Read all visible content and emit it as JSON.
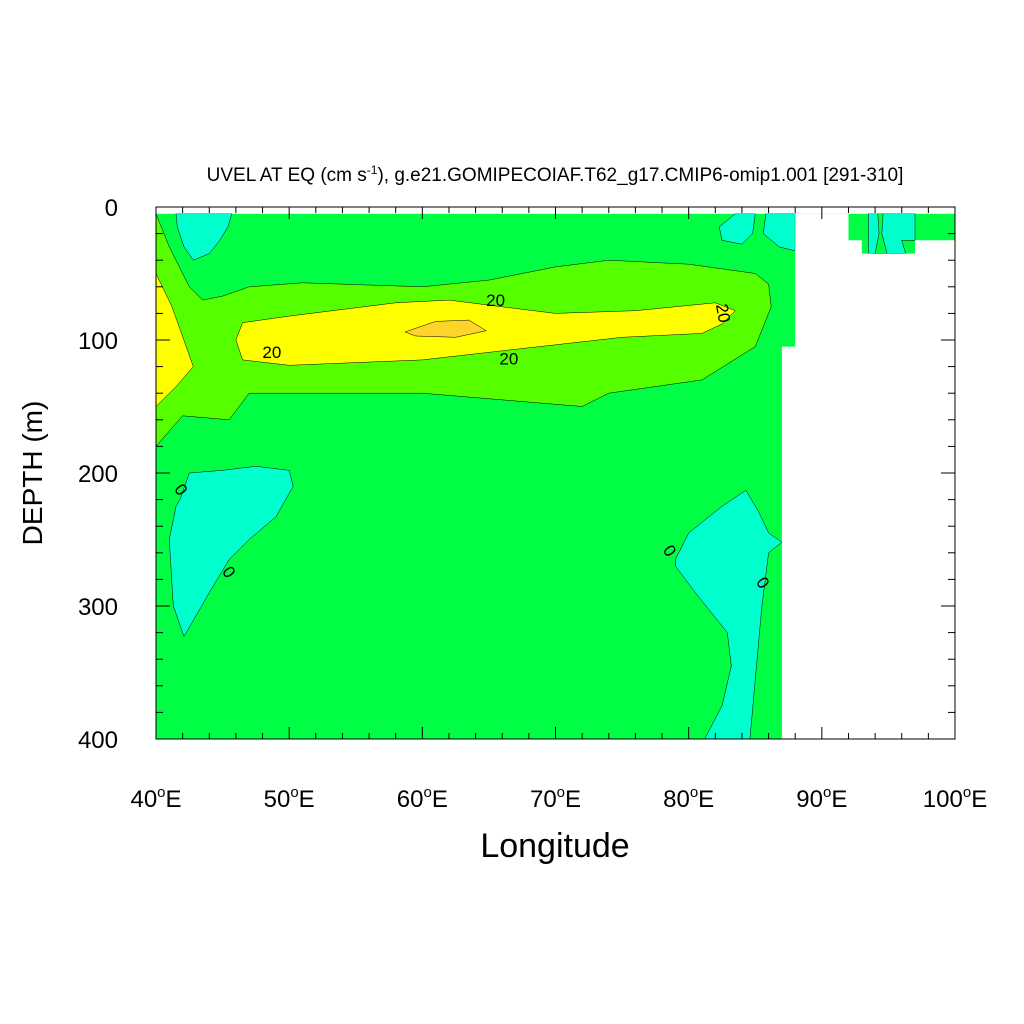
{
  "chart_data": {
    "type": "contour",
    "title": {
      "main": "UVEL AT EQ (cm s",
      "sup": "-1",
      "rest": "), g.e21.GOMIPECOIAF.T62_g17.CMIP6-omip1.001 [291-310]"
    },
    "xlabel": "Longitude",
    "ylabel": "DEPTH (m)",
    "xlim": [
      40,
      100
    ],
    "ylim": [
      0,
      400
    ],
    "y_reversed": true,
    "x_ticks": [
      {
        "value": 40,
        "num": "40",
        "deg": "o",
        "unit": "E"
      },
      {
        "value": 50,
        "num": "50",
        "deg": "o",
        "unit": "E"
      },
      {
        "value": 60,
        "num": "60",
        "deg": "o",
        "unit": "E"
      },
      {
        "value": 70,
        "num": "70",
        "deg": "o",
        "unit": "E"
      },
      {
        "value": 80,
        "num": "80",
        "deg": "o",
        "unit": "E"
      },
      {
        "value": 90,
        "num": "90",
        "deg": "o",
        "unit": "E"
      },
      {
        "value": 100,
        "num": "100",
        "deg": "o",
        "unit": "E"
      }
    ],
    "y_ticks": [
      {
        "value": 0,
        "label": "0"
      },
      {
        "value": 100,
        "label": "100"
      },
      {
        "value": 200,
        "label": "200"
      },
      {
        "value": 300,
        "label": "300"
      },
      {
        "value": 400,
        "label": "400"
      }
    ],
    "contour_fill_colors": {
      "negative": "#00ffcc",
      "zero_to_ten": "#00ff44",
      "ten_to_twenty": "#55ff00",
      "twenty_to_thirty": "#ffff00",
      "above_thirty": "#ffd42a",
      "land_no_data": "#ffffff"
    },
    "regions": [
      {
        "name": "westward-flow-northwest",
        "level": "negative",
        "points": [
          [
            41.5,
            5
          ],
          [
            45.7,
            5
          ],
          [
            45.4,
            15
          ],
          [
            44.8,
            25
          ],
          [
            44.0,
            35
          ],
          [
            42.8,
            40
          ],
          [
            42.1,
            30
          ],
          [
            41.6,
            15
          ]
        ]
      },
      {
        "name": "undercurrent-margin",
        "level": "ten_to_twenty",
        "points": [
          [
            40,
            5
          ],
          [
            41.0,
            30
          ],
          [
            42.5,
            60
          ],
          [
            43.5,
            70
          ],
          [
            45.0,
            67
          ],
          [
            47.0,
            60
          ],
          [
            51.0,
            57
          ],
          [
            60.0,
            60
          ],
          [
            65.0,
            55
          ],
          [
            70.0,
            45
          ],
          [
            74.0,
            40
          ],
          [
            80.0,
            43
          ],
          [
            85.0,
            50
          ],
          [
            86.0,
            58
          ],
          [
            86.2,
            75
          ],
          [
            85.0,
            105
          ],
          [
            81.0,
            130
          ],
          [
            74.0,
            140
          ],
          [
            72.0,
            150
          ],
          [
            60.0,
            140
          ],
          [
            47.0,
            140
          ],
          [
            45.5,
            160
          ],
          [
            42.0,
            157
          ],
          [
            40.0,
            180
          ],
          [
            40,
            5
          ]
        ]
      },
      {
        "name": "undercurrent-core",
        "level": "twenty_to_thirty",
        "points": [
          [
            40,
            50
          ],
          [
            41.2,
            75
          ],
          [
            42.8,
            120
          ],
          [
            41.5,
            135
          ],
          [
            40,
            150
          ],
          [
            40,
            50
          ]
        ]
      },
      {
        "name": "undercurrent-core",
        "level": "twenty_to_thirty",
        "points": [
          [
            46.0,
            100
          ],
          [
            46.5,
            87
          ],
          [
            50.0,
            82
          ],
          [
            58.0,
            72
          ],
          [
            62.0,
            70
          ],
          [
            66.0,
            75
          ],
          [
            70.0,
            80
          ],
          [
            76.0,
            78
          ],
          [
            82.0,
            72
          ],
          [
            83.5,
            78
          ],
          [
            82.5,
            88
          ],
          [
            81.0,
            95
          ],
          [
            75.0,
            98
          ],
          [
            67.0,
            107
          ],
          [
            60.0,
            115
          ],
          [
            50.0,
            119
          ],
          [
            46.5,
            115
          ],
          [
            46.0,
            100
          ]
        ]
      },
      {
        "name": "undercurrent-maximum",
        "level": "above_thirty",
        "points": [
          [
            58.7,
            94
          ],
          [
            61.0,
            86
          ],
          [
            63.5,
            85
          ],
          [
            64.8,
            93
          ],
          [
            62.5,
            98
          ],
          [
            59.5,
            97
          ]
        ]
      },
      {
        "name": "westward-flow-west-deep",
        "level": "negative",
        "points": [
          [
            41.8,
            220
          ],
          [
            42.5,
            200
          ],
          [
            45.0,
            198
          ],
          [
            47.5,
            195
          ],
          [
            50.0,
            198
          ],
          [
            50.3,
            210
          ],
          [
            49.0,
            233
          ],
          [
            47.0,
            250
          ],
          [
            45.5,
            265
          ],
          [
            44.0,
            290
          ],
          [
            42.1,
            323
          ],
          [
            41.3,
            300
          ],
          [
            41.0,
            250
          ],
          [
            41.5,
            225
          ]
        ]
      },
      {
        "name": "westward-flow-east-deep",
        "level": "negative",
        "points": [
          [
            79.0,
            265
          ],
          [
            80.0,
            245
          ],
          [
            82.5,
            225
          ],
          [
            84.3,
            213
          ],
          [
            85.3,
            230
          ],
          [
            86.0,
            245
          ],
          [
            87.0,
            252
          ],
          [
            86.0,
            260
          ],
          [
            85.5,
            300
          ],
          [
            84.6,
            400
          ],
          [
            81.2,
            400
          ],
          [
            82.5,
            375
          ],
          [
            83.2,
            345
          ],
          [
            82.9,
            320
          ],
          [
            80.5,
            290
          ],
          [
            79.0,
            270
          ]
        ]
      },
      {
        "name": "westward-flow-northeast",
        "level": "negative",
        "points": [
          [
            83.5,
            5
          ],
          [
            85.0,
            5
          ],
          [
            84.8,
            20
          ],
          [
            84.0,
            28
          ],
          [
            82.5,
            25
          ],
          [
            82.3,
            15
          ]
        ]
      },
      {
        "name": "westward-flow-northeast",
        "level": "negative",
        "points": [
          [
            85.8,
            5
          ],
          [
            88.0,
            5
          ],
          [
            88.0,
            33
          ],
          [
            86.8,
            30
          ],
          [
            85.6,
            20
          ]
        ]
      },
      {
        "name": "westward-flow-far-east",
        "level": "negative",
        "points": [
          [
            93.5,
            5
          ],
          [
            97.0,
            5
          ],
          [
            97.0,
            25
          ],
          [
            96.0,
            25
          ],
          [
            96.3,
            35
          ],
          [
            93.5,
            35
          ]
        ]
      },
      {
        "name": "eastward-flow-far-east",
        "level": "zero_to_ten",
        "points": [
          [
            94.2,
            5
          ],
          [
            94.6,
            5
          ],
          [
            94.5,
            20
          ],
          [
            94.9,
            35
          ],
          [
            94.0,
            35
          ],
          [
            94.3,
            20
          ]
        ]
      },
      {
        "name": "land-mask",
        "level": "land_no_data",
        "points": [
          [
            88.0,
            5
          ],
          [
            92.0,
            5
          ],
          [
            92.0,
            25
          ],
          [
            93.0,
            25
          ],
          [
            93.0,
            35
          ],
          [
            97.0,
            35
          ],
          [
            97.0,
            25
          ],
          [
            100,
            25
          ],
          [
            100,
            400
          ],
          [
            87.0,
            400
          ],
          [
            87.0,
            105
          ],
          [
            88.0,
            105
          ],
          [
            88.0,
            5
          ]
        ]
      }
    ],
    "contour_labels": [
      {
        "text": "20",
        "x": 65.5,
        "y": 71,
        "rotate": 0
      },
      {
        "text": "20",
        "x": 82.5,
        "y": 80,
        "rotate": 80
      },
      {
        "text": "20",
        "x": 48.7,
        "y": 110,
        "rotate": 0
      },
      {
        "text": "20",
        "x": 66.5,
        "y": 115,
        "rotate": 0
      },
      {
        "text": "0",
        "x": 41.8,
        "y": 213,
        "rotate": 55
      },
      {
        "text": "0",
        "x": 45.4,
        "y": 275,
        "rotate": 55
      },
      {
        "text": "0",
        "x": 78.5,
        "y": 259,
        "rotate": 55
      },
      {
        "text": "0",
        "x": 85.5,
        "y": 283,
        "rotate": 55
      }
    ]
  }
}
